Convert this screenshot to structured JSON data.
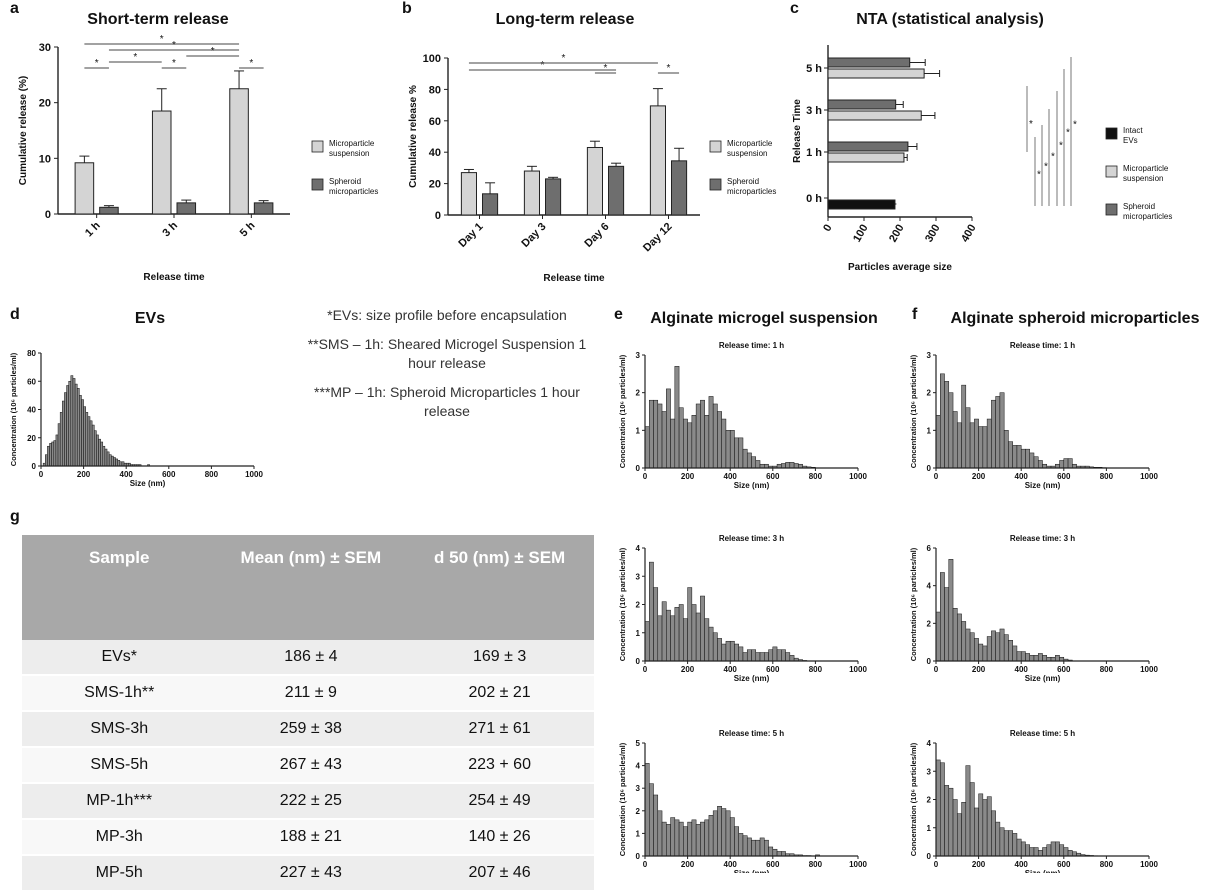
{
  "panel_labels": {
    "a": "a",
    "b": "b",
    "c": "c",
    "d": "d",
    "e": "e",
    "f": "f",
    "g": "g"
  },
  "chart_data": [
    {
      "id": "a",
      "type": "bar",
      "title": "Short-term release",
      "xlabel": "Release time",
      "ylabel": "Cumulative release (%)",
      "categories": [
        "1 h",
        "3 h",
        "5 h"
      ],
      "ylim": [
        0,
        30
      ],
      "yticks": [
        0,
        10,
        20,
        30
      ],
      "series": [
        {
          "name": "Microparticle suspension",
          "values": [
            9.2,
            18.5,
            22.5
          ],
          "errors": [
            1.2,
            4.0,
            3.2
          ],
          "color": "#d4d4d4"
        },
        {
          "name": "Spheroid microparticles",
          "values": [
            1.2,
            2.0,
            2.0
          ],
          "errors": [
            0.3,
            0.5,
            0.4
          ],
          "color": "#6e6e6e"
        }
      ],
      "significance": [
        {
          "from": [
            0,
            0
          ],
          "to": [
            0,
            1
          ],
          "label": "*"
        },
        {
          "from": [
            0,
            1
          ],
          "to": [
            1,
            0
          ],
          "label": "*"
        },
        {
          "from": [
            1,
            0
          ],
          "to": [
            1,
            1
          ],
          "label": "*"
        },
        {
          "from": [
            0,
            0
          ],
          "to": [
            2,
            0
          ],
          "label": "*"
        },
        {
          "from": [
            0,
            1
          ],
          "to": [
            2,
            0
          ],
          "label": "*"
        },
        {
          "from": [
            1,
            1
          ],
          "to": [
            2,
            0
          ],
          "label": "*"
        },
        {
          "from": [
            2,
            0
          ],
          "to": [
            2,
            1
          ],
          "label": "*"
        }
      ],
      "legend": "right"
    },
    {
      "id": "b",
      "type": "bar",
      "title": "Long-term release",
      "xlabel": "Release time",
      "ylabel": "Cumulative release %",
      "categories": [
        "Day 1",
        "Day 3",
        "Day 6",
        "Day 12"
      ],
      "ylim": [
        0,
        100
      ],
      "yticks": [
        0,
        20,
        40,
        60,
        80,
        100
      ],
      "series": [
        {
          "name": "Microparticle suspension",
          "values": [
            27,
            28,
            43,
            69.5
          ],
          "errors": [
            2,
            3,
            4,
            11
          ],
          "color": "#d4d4d4"
        },
        {
          "name": "Spheroid microparticles",
          "values": [
            13.5,
            23,
            31,
            34.5
          ],
          "errors": [
            7,
            1,
            2,
            8
          ],
          "color": "#6e6e6e"
        }
      ],
      "significance": [
        {
          "from": [
            0,
            0
          ],
          "to": [
            2,
            1
          ],
          "label": "*"
        },
        {
          "from": [
            0,
            0
          ],
          "to": [
            3,
            0
          ],
          "label": "*"
        },
        {
          "from": [
            2,
            0
          ],
          "to": [
            2,
            1
          ],
          "label": "*"
        },
        {
          "from": [
            3,
            0
          ],
          "to": [
            3,
            1
          ],
          "label": "*"
        }
      ],
      "legend": "right"
    },
    {
      "id": "c",
      "type": "bar",
      "orientation": "horizontal",
      "title": "NTA (statistical analysis)",
      "xlabel": "Particles average size",
      "ylabel": "Release Time",
      "categories": [
        "0 h",
        "1 h",
        "3 h",
        "5 h"
      ],
      "xlim": [
        0,
        400
      ],
      "xticks": [
        0,
        100,
        200,
        300,
        400
      ],
      "series": [
        {
          "name": "Intact EVs",
          "values": [
            186,
            null,
            null,
            null
          ],
          "errors": [
            4,
            0,
            0,
            0
          ],
          "color": "#111111"
        },
        {
          "name": "Microparticle suspension",
          "values": [
            null,
            211,
            259,
            267
          ],
          "errors": [
            0,
            9,
            38,
            43
          ],
          "color": "#d4d4d4"
        },
        {
          "name": "Spheroid microparticles",
          "values": [
            null,
            222,
            188,
            227
          ],
          "errors": [
            0,
            25,
            21,
            43
          ],
          "color": "#6e6e6e"
        }
      ],
      "significance_label": "*",
      "legend": "right"
    },
    {
      "id": "d",
      "type": "histogram",
      "title": "EVs",
      "xlabel": "Size (nm)",
      "ylabel": "Concentration (10⁶ particles/ml)",
      "xlim": [
        0,
        1000
      ],
      "xticks": [
        0,
        200,
        400,
        600,
        800,
        1000
      ],
      "ylim": [
        0,
        80
      ],
      "yticks": [
        0,
        20,
        40,
        60,
        80
      ],
      "bin_width": 10,
      "values": [
        0,
        2,
        8,
        14,
        16,
        17,
        18,
        22,
        30,
        38,
        46,
        52,
        57,
        60,
        64,
        62,
        58,
        55,
        50,
        47,
        42,
        38,
        35,
        32,
        29,
        25,
        22,
        19,
        17,
        14,
        12,
        10,
        8,
        7,
        6,
        5,
        4,
        3,
        3,
        2,
        2,
        2,
        1,
        1,
        1,
        1,
        1,
        0,
        0,
        0,
        1,
        0,
        0,
        0,
        0,
        0,
        0,
        0,
        0,
        0
      ]
    },
    {
      "id": "e1",
      "type": "histogram",
      "group": "e",
      "group_title": "Alginate microgel suspension",
      "title": "Release time: 1 h",
      "xlabel": "Size (nm)",
      "ylabel": "Concentration (10⁶ particles/ml)",
      "xlim": [
        0,
        1000
      ],
      "xticks": [
        0,
        200,
        400,
        600,
        800,
        1000
      ],
      "ylim": [
        0,
        3
      ],
      "yticks": [
        0,
        1,
        2,
        3
      ],
      "bin_width": 20,
      "values": [
        1.1,
        1.8,
        1.8,
        1.7,
        1.5,
        2.1,
        1.3,
        2.7,
        1.6,
        1.3,
        1.2,
        1.4,
        1.7,
        1.8,
        1.4,
        1.9,
        1.7,
        1.5,
        1.3,
        1.0,
        1.0,
        0.8,
        0.8,
        0.5,
        0.4,
        0.3,
        0.2,
        0.1,
        0.1,
        0.05,
        0.05,
        0.1,
        0.12,
        0.15,
        0.15,
        0.12,
        0.1,
        0.05,
        0.03,
        0.02
      ]
    },
    {
      "id": "e2",
      "type": "histogram",
      "group": "e",
      "title": "Release time: 3 h",
      "xlabel": "Size (nm)",
      "ylabel": "Concentration (10⁶ particles/ml)",
      "xlim": [
        0,
        1000
      ],
      "xticks": [
        0,
        200,
        400,
        600,
        800,
        1000
      ],
      "ylim": [
        0,
        4
      ],
      "yticks": [
        0,
        1,
        2,
        3,
        4
      ],
      "bin_width": 20,
      "values": [
        1.4,
        3.5,
        2.6,
        1.6,
        2.1,
        1.8,
        1.6,
        1.9,
        2.0,
        1.5,
        2.6,
        2.0,
        1.7,
        2.3,
        1.5,
        1.2,
        1.0,
        0.8,
        0.6,
        0.7,
        0.7,
        0.6,
        0.5,
        0.3,
        0.4,
        0.4,
        0.3,
        0.3,
        0.3,
        0.4,
        0.5,
        0.4,
        0.4,
        0.3,
        0.2,
        0.1,
        0.05,
        0.02
      ]
    },
    {
      "id": "e3",
      "type": "histogram",
      "group": "e",
      "title": "Release time: 5 h",
      "xlabel": "Size (nm)",
      "ylabel": "Concentration (10⁶ particles/ml)",
      "xlim": [
        0,
        1000
      ],
      "xticks": [
        0,
        200,
        400,
        600,
        800,
        1000
      ],
      "ylim": [
        0,
        5
      ],
      "yticks": [
        0,
        1,
        2,
        3,
        4,
        5
      ],
      "bin_width": 20,
      "values": [
        4.1,
        3.2,
        2.7,
        2.0,
        1.5,
        1.4,
        1.7,
        1.6,
        1.5,
        1.3,
        1.5,
        1.6,
        1.4,
        1.5,
        1.6,
        1.8,
        2.0,
        2.2,
        2.1,
        2.0,
        1.7,
        1.3,
        1.0,
        0.9,
        0.8,
        0.7,
        0.7,
        0.8,
        0.7,
        0.4,
        0.3,
        0.2,
        0.2,
        0.1,
        0.1,
        0.05,
        0.05,
        0.02,
        0.02,
        0.01,
        0.05
      ]
    },
    {
      "id": "f1",
      "type": "histogram",
      "group": "f",
      "group_title": "Alginate spheroid microparticles",
      "title": "Release time: 1 h",
      "xlabel": "Size (nm)",
      "ylabel": "Concentration (10⁶ particles/ml)",
      "xlim": [
        0,
        1000
      ],
      "xticks": [
        0,
        200,
        400,
        600,
        800,
        1000
      ],
      "ylim": [
        0,
        3
      ],
      "yticks": [
        0,
        1,
        2,
        3
      ],
      "bin_width": 20,
      "values": [
        1.4,
        2.5,
        2.3,
        2.0,
        1.5,
        1.2,
        2.2,
        1.6,
        1.2,
        1.3,
        1.1,
        1.1,
        1.3,
        1.8,
        1.9,
        2.0,
        1.0,
        0.7,
        0.6,
        0.6,
        0.5,
        0.5,
        0.4,
        0.3,
        0.2,
        0.1,
        0.05,
        0.05,
        0.1,
        0.2,
        0.25,
        0.25,
        0.1,
        0.05,
        0.05,
        0.05,
        0.03,
        0.02,
        0.02,
        0.01
      ]
    },
    {
      "id": "f2",
      "type": "histogram",
      "group": "f",
      "title": "Release time: 3 h",
      "xlabel": "Size (nm)",
      "ylabel": "Concentration (10⁶ particles/ml)",
      "xlim": [
        0,
        1000
      ],
      "xticks": [
        0,
        200,
        400,
        600,
        800,
        1000
      ],
      "ylim": [
        0,
        6
      ],
      "yticks": [
        0,
        2,
        4,
        6
      ],
      "bin_width": 20,
      "values": [
        2.6,
        4.7,
        3.9,
        5.4,
        2.8,
        2.5,
        2.1,
        1.7,
        1.5,
        1.2,
        0.9,
        0.8,
        1.3,
        1.6,
        1.5,
        1.7,
        1.4,
        1.1,
        0.8,
        0.5,
        0.5,
        0.4,
        0.3,
        0.3,
        0.4,
        0.3,
        0.2,
        0.2,
        0.3,
        0.2,
        0.1,
        0.05
      ]
    },
    {
      "id": "f3",
      "type": "histogram",
      "group": "f",
      "title": "Release time: 5 h",
      "xlabel": "Size (nm)",
      "ylabel": "Concentration (10⁶ particles/ml)",
      "xlim": [
        0,
        1000
      ],
      "xticks": [
        0,
        200,
        400,
        600,
        800,
        1000
      ],
      "ylim": [
        0,
        4
      ],
      "yticks": [
        0,
        1,
        2,
        3,
        4
      ],
      "bin_width": 20,
      "values": [
        3.4,
        3.3,
        2.5,
        2.4,
        2.0,
        1.5,
        1.9,
        3.2,
        2.6,
        1.7,
        2.2,
        2.0,
        2.1,
        1.6,
        1.2,
        1.0,
        0.9,
        0.9,
        0.8,
        0.6,
        0.5,
        0.4,
        0.3,
        0.3,
        0.2,
        0.3,
        0.4,
        0.5,
        0.5,
        0.4,
        0.3,
        0.2,
        0.15,
        0.1,
        0.05,
        0.03,
        0.02,
        0.01
      ]
    }
  ],
  "notes": [
    "*EVs: size profile before encapsulation",
    "**SMS – 1h: Sheared Microgel Suspension 1 hour release",
    "***MP – 1h: Spheroid Microparticles 1 hour release"
  ],
  "table": {
    "headers": [
      "Sample",
      "Mean (nm) ± SEM",
      "d 50 (nm) ± SEM"
    ],
    "rows": [
      [
        "EVs*",
        "186 ± 4",
        "169 ± 3"
      ],
      [
        "SMS-1h**",
        "211 ± 9",
        "202 ± 21"
      ],
      [
        "SMS-3h",
        "259 ± 38",
        "271 ± 61"
      ],
      [
        "SMS-5h",
        "267 ± 43",
        "223 + 60"
      ],
      [
        "MP-1h***",
        "222 ± 25",
        "254 ± 49"
      ],
      [
        "MP-3h",
        "188 ± 21",
        "140 ± 26"
      ],
      [
        "MP-5h",
        "227 ± 43",
        "207 ± 46"
      ]
    ]
  }
}
